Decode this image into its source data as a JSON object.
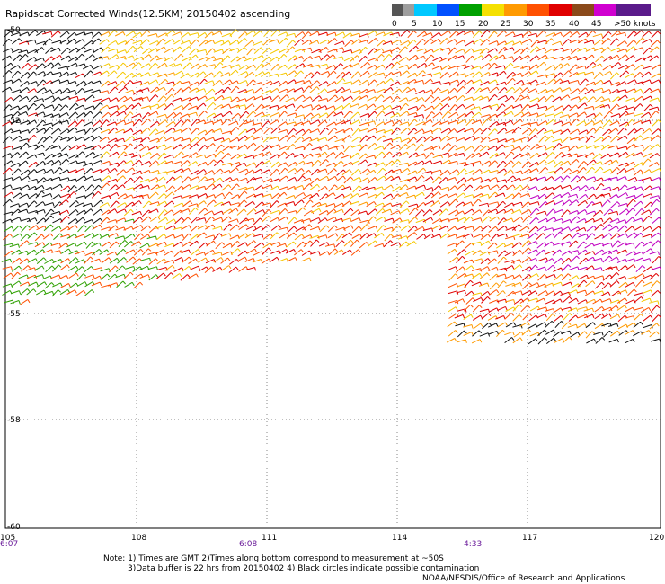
{
  "title": "Rapidscat Corrected Winds(12.5KM) 20150402 ascending",
  "legend": {
    "labels": [
      "0",
      "5",
      "10",
      "15",
      "20",
      "25",
      "30",
      "35",
      "40",
      "45",
      ">50 knots"
    ],
    "colors": [
      "#555555",
      "#9e9e9e",
      "#00c8ff",
      "#0050ff",
      "#00a000",
      "#f5e000",
      "#ff9a00",
      "#ff5000",
      "#e00000",
      "#8b4a1a",
      "#d000d0",
      "#5a1a8a"
    ]
  },
  "axes": {
    "lat_labels": [
      "-50",
      "-52",
      "-55",
      "-58",
      "-60"
    ],
    "lon_labels": [
      "105",
      "108",
      "111",
      "114",
      "117",
      "120"
    ],
    "time_labels": [
      "6:07",
      "6:08",
      "4:33"
    ]
  },
  "notes": {
    "line1": "Note: 1) Times are GMT 2)Times along bottom correspond to measurement at ~50S",
    "line2": "3)Data buffer is 22 hrs from 20150402 4) Black circles indicate possible contamination",
    "credit": "NOAA/NESDIS/Office of Research and Applications"
  }
}
